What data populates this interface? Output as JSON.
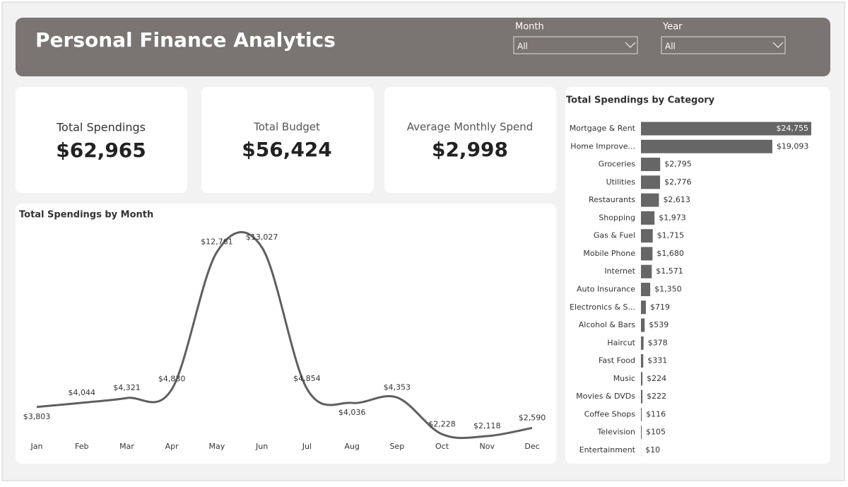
{
  "header": {
    "title": "Personal Finance Analytics",
    "filters": [
      {
        "label": "Month",
        "value": "All"
      },
      {
        "label": "Year",
        "value": "All"
      }
    ]
  },
  "kpis": [
    {
      "label": "Total Spendings",
      "value": "$62,965"
    },
    {
      "label": "Total Budget",
      "value": "$56,424"
    },
    {
      "label": "Average Monthly Spend",
      "value": "$2,998"
    }
  ],
  "chart_data": [
    {
      "type": "line",
      "title": "Total Spendings by Month",
      "color": "#5f5f5f",
      "categories": [
        "Jan",
        "Feb",
        "Mar",
        "Apr",
        "May",
        "Jun",
        "Jul",
        "Aug",
        "Sep",
        "Oct",
        "Nov",
        "Dec"
      ],
      "values": [
        3803,
        4044,
        4321,
        4830,
        12761,
        13027,
        4854,
        4036,
        4353,
        2228,
        2118,
        2590
      ],
      "value_labels": [
        "$3,803",
        "$4,044",
        "$4,321",
        "$4,830",
        "$12,761",
        "$13,027",
        "$4,854",
        "$4,036",
        "$4,353",
        "$2,228",
        "$2,118",
        "$2,590"
      ]
    },
    {
      "type": "hbar",
      "title": "Total Spendings by Category",
      "color": "#666666",
      "categories": [
        "Mortgage & Rent",
        "Home Improve...",
        "Groceries",
        "Utilities",
        "Restaurants",
        "Shopping",
        "Gas & Fuel",
        "Mobile Phone",
        "Internet",
        "Auto Insurance",
        "Electronics & S...",
        "Alcohol & Bars",
        "Haircut",
        "Fast Food",
        "Music",
        "Movies & DVDs",
        "Coffee Shops",
        "Television",
        "Entertainment"
      ],
      "values": [
        24755,
        19093,
        2795,
        2776,
        2613,
        1973,
        1715,
        1680,
        1571,
        1350,
        719,
        539,
        378,
        331,
        224,
        222,
        116,
        105,
        10
      ],
      "value_labels": [
        "$24,755",
        "$19,093",
        "$2,795",
        "$2,776",
        "$2,613",
        "$1,973",
        "$1,715",
        "$1,680",
        "$1,571",
        "$1,350",
        "$719",
        "$539",
        "$378",
        "$331",
        "$224",
        "$222",
        "$116",
        "$105",
        "$10"
      ]
    }
  ]
}
